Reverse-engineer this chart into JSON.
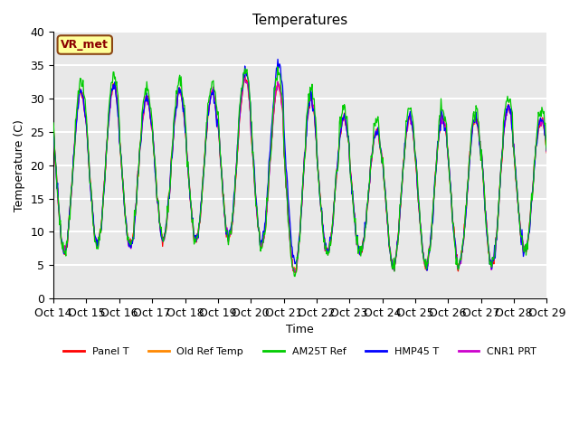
{
  "title": "Temperatures",
  "xlabel": "Time",
  "ylabel": "Temperature (C)",
  "ylim": [
    0,
    40
  ],
  "background_color": "#e8e8e8",
  "grid_color": "white",
  "annotation_text": "VR_met",
  "annotation_color": "#8B0000",
  "annotation_bg": "#ffff99",
  "annotation_border": "#8B4513",
  "series_colors": {
    "Panel T": "#ff0000",
    "Old Ref Temp": "#ff8800",
    "AM25T Ref": "#00cc00",
    "HMP45 T": "#0000ff",
    "CNR1 PRT": "#cc00cc"
  },
  "x_tick_labels": [
    "Oct 14",
    "Oct 15",
    "Oct 16",
    "Oct 17",
    "Oct 18",
    "Oct 19",
    "Oct 20",
    "Oct 21",
    "Oct 22",
    "Oct 23",
    "Oct 24",
    "Oct 25",
    "Oct 26",
    "Oct 27",
    "Oct 28",
    "Oct 29"
  ],
  "num_days": 15,
  "points_per_day": 48,
  "amp_arr": [
    12,
    12,
    11,
    11,
    11,
    12,
    12,
    13,
    10,
    9,
    11,
    11,
    11,
    12,
    10
  ],
  "mid_arr": [
    19,
    20,
    19,
    20,
    20,
    21,
    20,
    17,
    17,
    16,
    16,
    16,
    16,
    17,
    17
  ]
}
